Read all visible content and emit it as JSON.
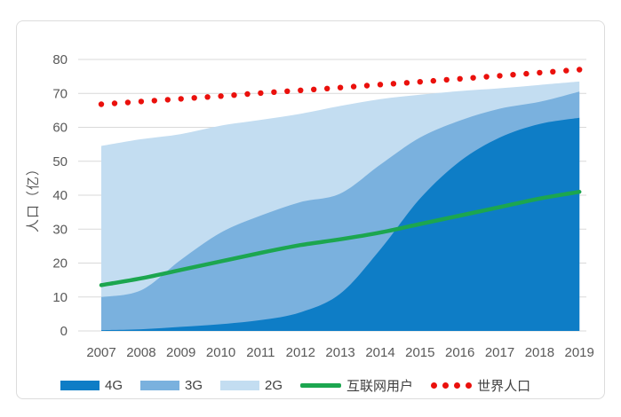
{
  "chart_data": {
    "type": "area",
    "stacked": true,
    "categories": [
      "2007",
      "2008",
      "2009",
      "2010",
      "2011",
      "2012",
      "2013",
      "2014",
      "2015",
      "2016",
      "2017",
      "2018",
      "2019"
    ],
    "ylabel": "人口（亿）",
    "ylim": [
      0,
      80
    ],
    "ytick_step": 10,
    "grid": "horizontal",
    "legend_position": "bottom",
    "area_series": [
      {
        "name": "4G",
        "color": "#0E7DC6",
        "values": [
          0.2,
          0.5,
          1.2,
          2,
          3.2,
          5.5,
          11,
          24,
          39,
          50,
          57,
          61,
          62.8
        ]
      },
      {
        "name": "3G",
        "color": "#7AB1DE",
        "values": [
          9.8,
          11.5,
          19.8,
          27,
          30.8,
          32.5,
          29.5,
          25,
          18,
          12,
          8.5,
          6.5,
          7.7
        ]
      },
      {
        "name": "2G",
        "color": "#C3DDF1",
        "values": [
          44.5,
          44.5,
          37,
          31.5,
          28.2,
          26,
          25.8,
          19.3,
          12.6,
          8.7,
          6,
          5,
          3
        ]
      }
    ],
    "line_series": [
      {
        "name": "互联网用户",
        "color": "#1CA64F",
        "style": "solid",
        "values": [
          13.5,
          15.5,
          18,
          20.5,
          23,
          25.3,
          27,
          29,
          31.5,
          34,
          36.5,
          39,
          41
        ]
      },
      {
        "name": "世界人口",
        "color": "#EA100C",
        "style": "dotted",
        "values": [
          66.8,
          67.6,
          68.4,
          69.2,
          70.1,
          70.9,
          71.7,
          72.6,
          73.4,
          74.3,
          75.2,
          76.1,
          77
        ]
      }
    ],
    "axis_text_color": "#595959",
    "gridline_color": "#D9D9D9"
  }
}
